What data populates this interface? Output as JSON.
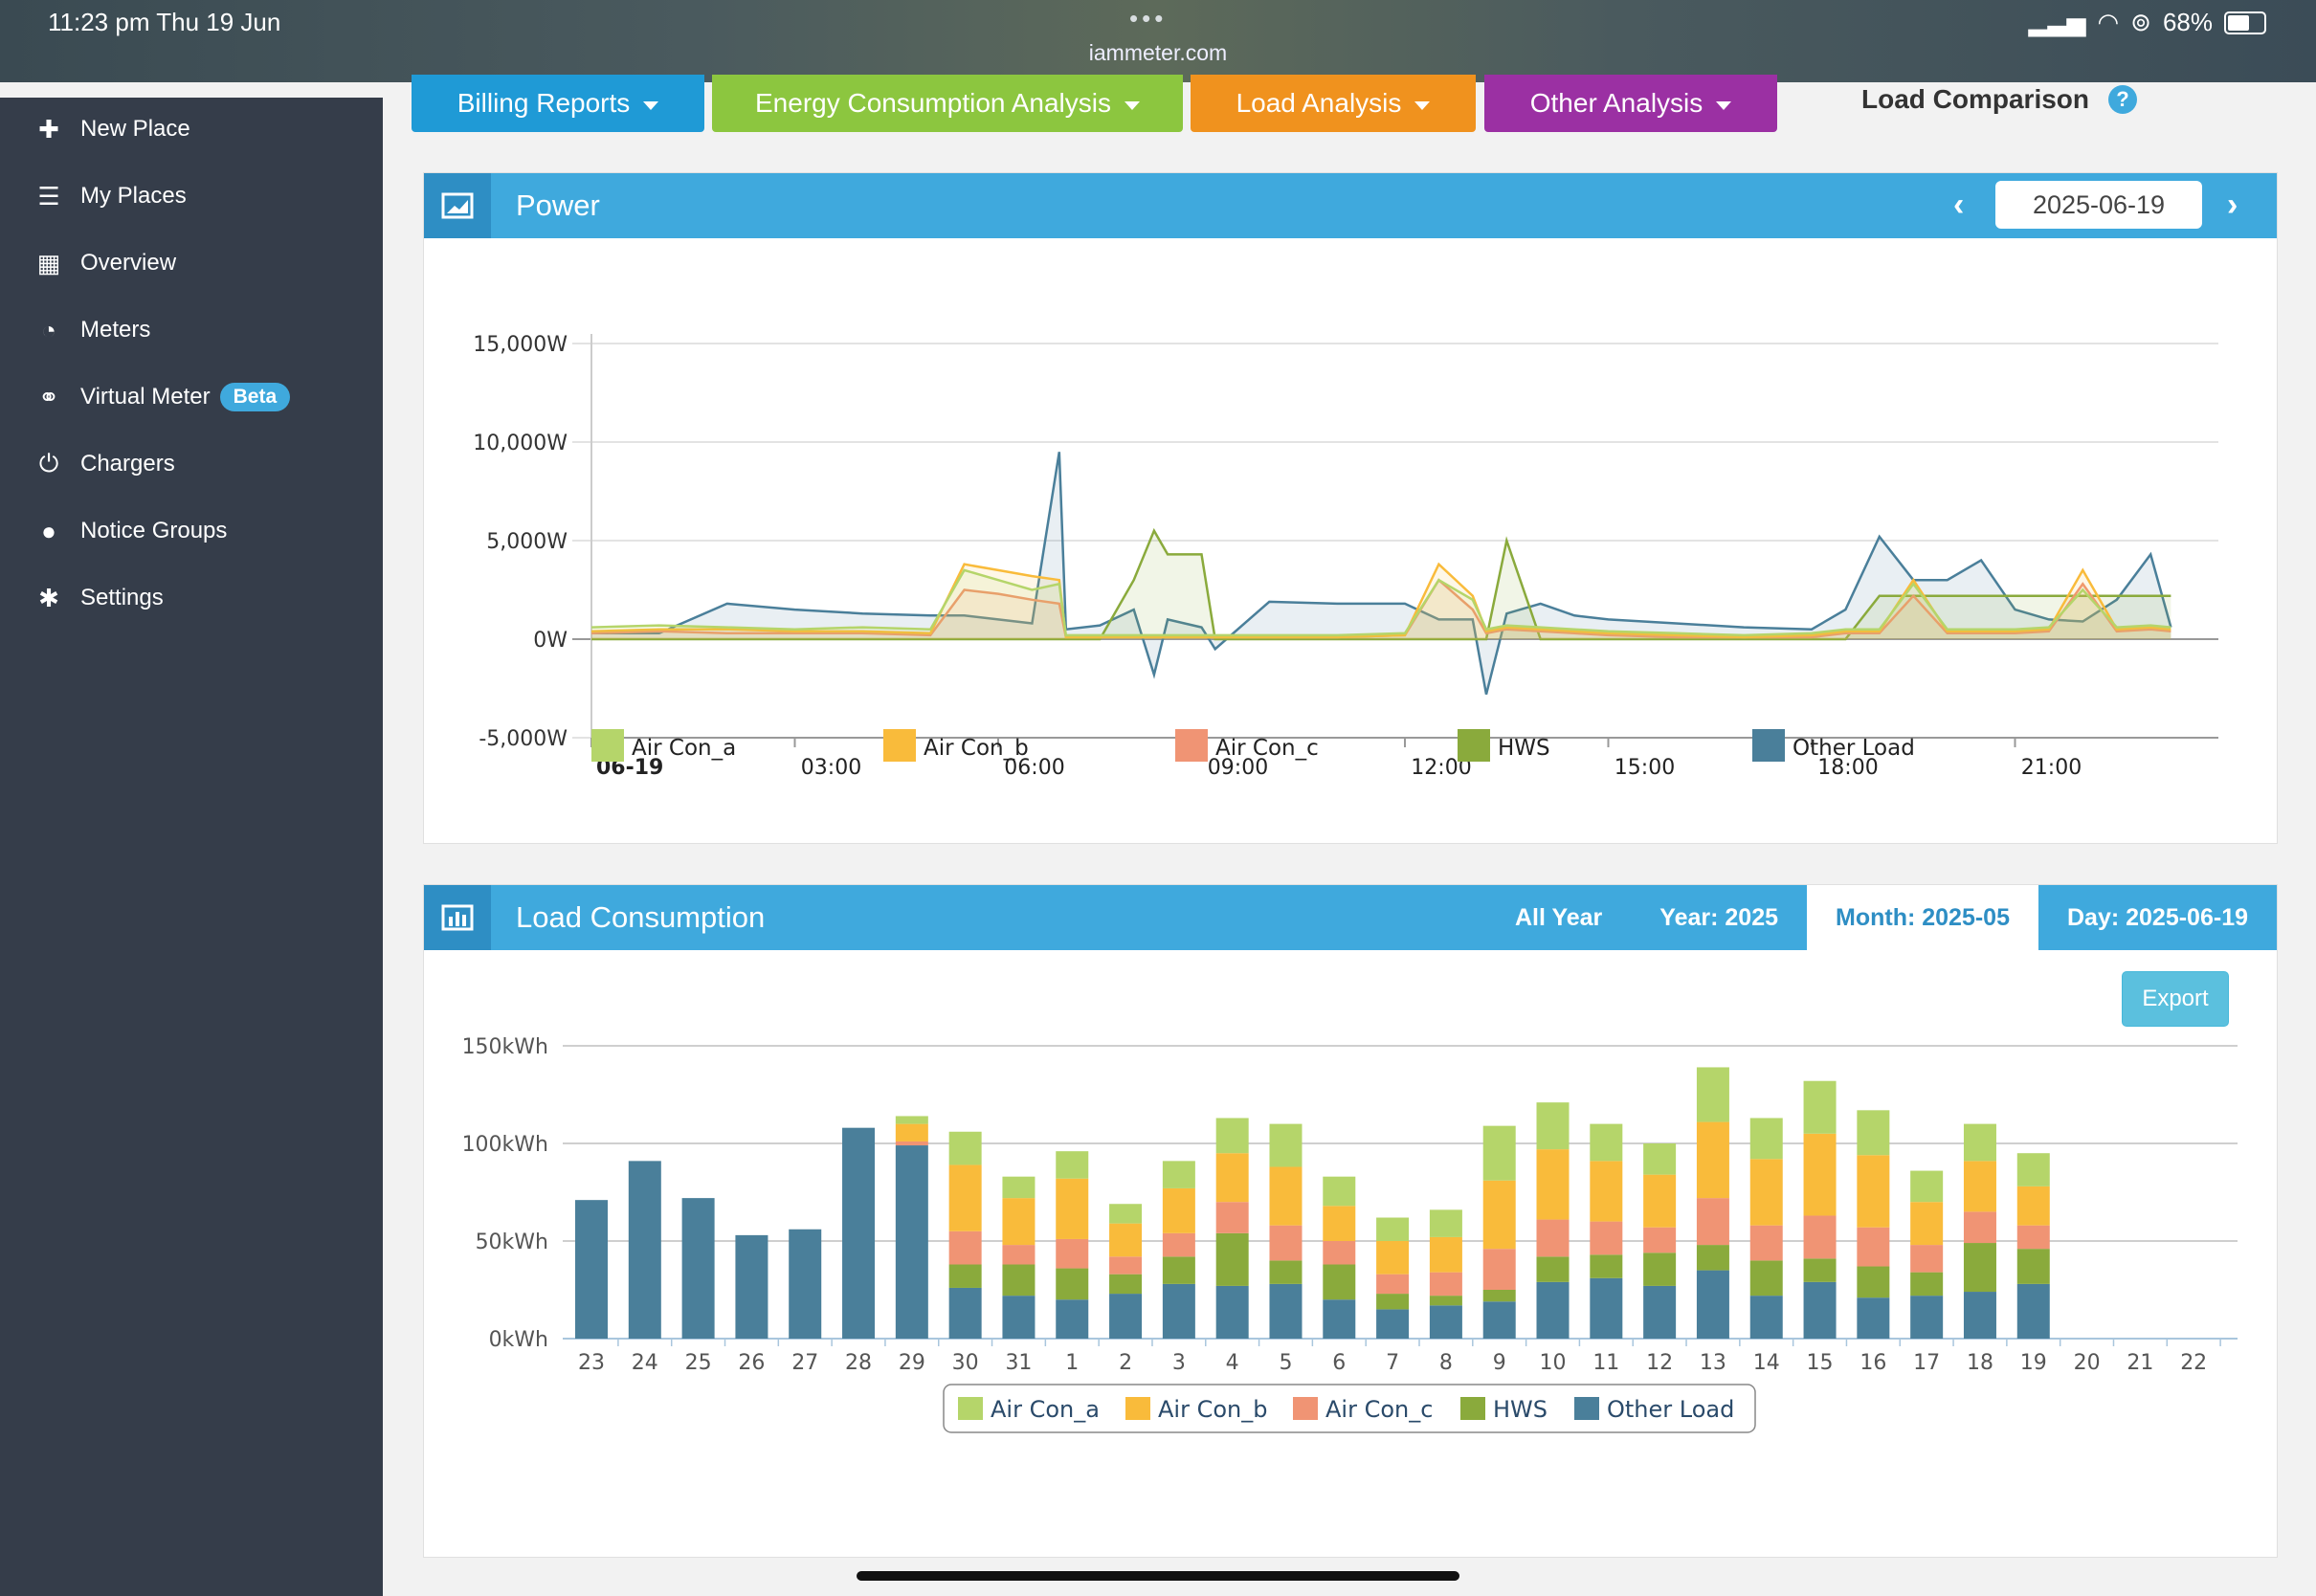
{
  "status": {
    "time": "11:23 pm   Thu 19 Jun",
    "url": "iammeter.com",
    "battery": "68%",
    "battery_level": 0.68
  },
  "sidebar": {
    "items": [
      {
        "label": "New Place",
        "icon": "plus-icon"
      },
      {
        "label": "My Places",
        "icon": "list-icon"
      },
      {
        "label": "Overview",
        "icon": "grid-icon"
      },
      {
        "label": "Meters",
        "icon": "gauge-icon"
      },
      {
        "label": "Virtual Meter",
        "icon": "link-icon",
        "badge": "Beta"
      },
      {
        "label": "Chargers",
        "icon": "power-icon"
      },
      {
        "label": "Notice Groups",
        "icon": "user-icon"
      },
      {
        "label": "Settings",
        "icon": "gear-icon"
      }
    ]
  },
  "nav": {
    "billing": "Billing Reports",
    "energy": "Energy Consumption Analysis",
    "load": "Load Analysis",
    "other": "Other Analysis",
    "current": "Load Comparison",
    "help": "?",
    "colors": {
      "billing": "#1f9ad6",
      "energy": "#8cc63f",
      "load": "#f0921e",
      "other": "#9b30a3"
    }
  },
  "power_panel": {
    "title": "Power",
    "date": "2025-06-19",
    "prev": "‹",
    "next": "›"
  },
  "consumption_panel": {
    "title": "Load Consumption",
    "tabs": [
      "All Year",
      "Year: 2025",
      "Month: 2025-05",
      "Day: 2025-06-19"
    ],
    "active_tab": 2,
    "export": "Export"
  },
  "series_colors": {
    "Air Con_a": "#b5d56a",
    "Air Con_b": "#f9bb3b",
    "Air Con_c": "#f09474",
    "HWS": "#8aaa3c",
    "Other Load": "#4a7f9a"
  },
  "chart_data": [
    {
      "type": "line",
      "title": "",
      "y_ticks": [
        "15,000W",
        "10,000W",
        "5,000W",
        "0W",
        "-5,000W"
      ],
      "ylim": [
        -5000,
        15000
      ],
      "x_ticks": [
        "06-19",
        "03:00",
        "06:00",
        "09:00",
        "12:00",
        "15:00",
        "18:00",
        "21:00"
      ],
      "x_unit": "hour",
      "x": [
        0,
        1,
        2,
        3,
        4,
        5,
        5.5,
        6,
        6.5,
        6.9,
        7,
        7.5,
        8,
        8.3,
        8.5,
        9,
        9.2,
        10,
        11,
        12,
        12.5,
        13,
        13.2,
        13.5,
        14,
        14.5,
        15,
        16,
        17,
        18,
        18.5,
        19,
        19.5,
        20,
        20.5,
        21,
        21.5,
        22,
        22.5,
        23,
        23.3
      ],
      "series": [
        {
          "name": "Air Con_a",
          "values": [
            600,
            700,
            600,
            500,
            600,
            500,
            3500,
            3000,
            2500,
            2800,
            200,
            200,
            200,
            200,
            200,
            200,
            200,
            200,
            200,
            300,
            3000,
            2000,
            500,
            700,
            600,
            500,
            400,
            300,
            200,
            300,
            500,
            500,
            2800,
            500,
            500,
            500,
            600,
            2500,
            600,
            700,
            600
          ]
        },
        {
          "name": "Air Con_b",
          "values": [
            400,
            500,
            500,
            400,
            400,
            300,
            3800,
            3500,
            3200,
            3000,
            100,
            100,
            100,
            100,
            100,
            100,
            100,
            100,
            100,
            200,
            3800,
            2200,
            400,
            600,
            500,
            400,
            300,
            200,
            100,
            200,
            400,
            400,
            3000,
            400,
            400,
            400,
            500,
            3500,
            500,
            600,
            500
          ]
        },
        {
          "name": "Air Con_c",
          "values": [
            300,
            400,
            300,
            300,
            300,
            200,
            2500,
            2300,
            2000,
            1800,
            100,
            100,
            100,
            100,
            100,
            100,
            100,
            100,
            100,
            200,
            3000,
            1500,
            300,
            500,
            400,
            300,
            200,
            100,
            100,
            100,
            300,
            300,
            2200,
            300,
            300,
            300,
            400,
            2800,
            400,
            500,
            400
          ]
        },
        {
          "name": "HWS",
          "values": [
            0,
            0,
            0,
            0,
            0,
            0,
            0,
            0,
            0,
            0,
            0,
            0,
            3000,
            5500,
            4300,
            4300,
            0,
            0,
            0,
            0,
            0,
            0,
            0,
            5000,
            0,
            0,
            0,
            0,
            0,
            0,
            0,
            2200,
            2200,
            2200,
            2200,
            2200,
            2200,
            2200,
            2200,
            2200,
            2200
          ]
        },
        {
          "name": "Other Load",
          "values": [
            300,
            300,
            1800,
            1500,
            1300,
            1200,
            1200,
            1000,
            800,
            9500,
            500,
            700,
            1500,
            -1800,
            1000,
            600,
            -500,
            1900,
            1800,
            1800,
            1000,
            1000,
            -2800,
            1300,
            1800,
            1200,
            1000,
            800,
            600,
            500,
            1500,
            5200,
            3000,
            3000,
            4000,
            1500,
            1000,
            900,
            2000,
            4300,
            600
          ]
        }
      ]
    },
    {
      "type": "bar",
      "stacked": true,
      "y_ticks": [
        "150kWh",
        "100kWh",
        "50kWh",
        "0kWh"
      ],
      "ylim": [
        0,
        150
      ],
      "categories": [
        "23",
        "24",
        "25",
        "26",
        "27",
        "28",
        "29",
        "30",
        "31",
        "1",
        "2",
        "3",
        "4",
        "5",
        "6",
        "7",
        "8",
        "9",
        "10",
        "11",
        "12",
        "13",
        "14",
        "15",
        "16",
        "17",
        "18",
        "19",
        "20",
        "21",
        "22"
      ],
      "series": [
        {
          "name": "Other Load",
          "values": [
            71,
            91,
            72,
            53,
            56,
            108,
            99,
            26,
            22,
            20,
            23,
            28,
            27,
            28,
            20,
            15,
            17,
            19,
            29,
            31,
            27,
            35,
            22,
            29,
            21,
            22,
            24,
            28,
            0,
            0,
            0
          ]
        },
        {
          "name": "HWS",
          "values": [
            0,
            0,
            0,
            0,
            0,
            0,
            0,
            12,
            16,
            16,
            10,
            14,
            27,
            12,
            18,
            8,
            5,
            6,
            13,
            12,
            17,
            13,
            18,
            12,
            16,
            12,
            25,
            18,
            0,
            0,
            0
          ]
        },
        {
          "name": "Air Con_c",
          "values": [
            0,
            0,
            0,
            0,
            0,
            0,
            2,
            17,
            10,
            15,
            9,
            12,
            16,
            18,
            12,
            10,
            12,
            21,
            19,
            17,
            13,
            24,
            18,
            22,
            20,
            14,
            16,
            12,
            0,
            0,
            0
          ]
        },
        {
          "name": "Air Con_b",
          "values": [
            0,
            0,
            0,
            0,
            0,
            0,
            9,
            34,
            24,
            31,
            17,
            23,
            25,
            30,
            18,
            17,
            18,
            35,
            36,
            31,
            27,
            39,
            34,
            42,
            37,
            22,
            26,
            20,
            0,
            0,
            0
          ]
        },
        {
          "name": "Air Con_a",
          "values": [
            0,
            0,
            0,
            0,
            0,
            0,
            4,
            17,
            11,
            14,
            10,
            14,
            18,
            22,
            15,
            12,
            14,
            28,
            24,
            19,
            16,
            28,
            21,
            27,
            23,
            16,
            19,
            17,
            0,
            0,
            0
          ]
        }
      ],
      "legend": [
        "Air Con_a",
        "Air Con_b",
        "Air Con_c",
        "HWS",
        "Other Load"
      ],
      "legend_position": "bottom"
    }
  ]
}
